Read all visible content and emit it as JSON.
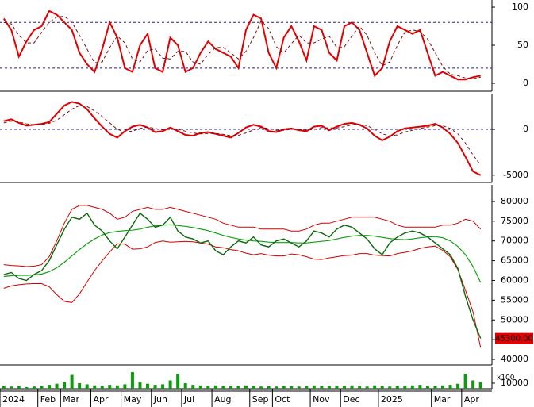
{
  "chart_data": [
    {
      "type": "line",
      "ylim": [
        -10.4,
        109.4
      ],
      "yticks": [
        100,
        50,
        0
      ],
      "levels": [
        80,
        20
      ],
      "series": [
        {
          "color": "#e00000",
          "values": [
            85,
            70,
            35,
            55,
            70,
            75,
            95,
            90,
            80,
            70,
            40,
            25,
            15,
            45,
            80,
            60,
            20,
            15,
            50,
            65,
            20,
            15,
            60,
            50,
            15,
            20,
            40,
            55,
            45,
            40,
            35,
            20,
            70,
            90,
            85,
            40,
            20,
            60,
            75,
            55,
            30,
            75,
            70,
            40,
            30,
            75,
            80,
            70,
            40,
            10,
            20,
            55,
            75,
            70,
            65,
            70,
            40,
            10,
            15,
            10,
            5,
            5,
            8,
            10
          ]
        },
        {
          "color": "#7a1010",
          "dashed": true,
          "values": [
            80,
            78,
            63,
            53,
            53,
            67,
            80,
            87,
            88,
            80,
            63,
            45,
            27,
            28,
            47,
            62,
            53,
            32,
            28,
            43,
            45,
            33,
            32,
            42,
            42,
            28,
            25,
            38,
            47,
            47,
            40,
            32,
            42,
            60,
            82,
            72,
            48,
            40,
            52,
            63,
            53,
            53,
            58,
            62,
            47,
            48,
            62,
            75,
            63,
            40,
            23,
            28,
            50,
            67,
            70,
            68,
            58,
            40,
            22,
            12,
            10,
            7,
            6,
            8
          ]
        }
      ]
    },
    {
      "type": "line",
      "ylim": [
        -5800,
        3900
      ],
      "yticks": [
        0,
        -5000
      ],
      "levels": [
        0
      ],
      "series": [
        {
          "color": "#e00000",
          "values": [
            900,
            1100,
            700,
            400,
            500,
            600,
            800,
            1700,
            2600,
            3000,
            2800,
            2200,
            1200,
            300,
            -500,
            -900,
            -200,
            300,
            500,
            200,
            -300,
            -200,
            200,
            -200,
            -600,
            -700,
            -400,
            -300,
            -500,
            -700,
            -900,
            -400,
            200,
            500,
            300,
            -200,
            -300,
            0,
            100,
            -100,
            -200,
            300,
            400,
            -100,
            300,
            600,
            700,
            500,
            100,
            -700,
            -1200,
            -800,
            -200,
            100,
            200,
            300,
            400,
            600,
            200,
            -500,
            -1500,
            -3000,
            -4600,
            -5000
          ]
        },
        {
          "color": "#7a1010",
          "dashed": true,
          "values": [
            700,
            900,
            800,
            600,
            500,
            550,
            650,
            1000,
            1600,
            2200,
            2600,
            2500,
            2000,
            1400,
            700,
            0,
            -300,
            -200,
            100,
            250,
            100,
            -50,
            0,
            0,
            -200,
            -400,
            -500,
            -450,
            -450,
            -550,
            -700,
            -650,
            -400,
            -50,
            200,
            100,
            -100,
            -100,
            0,
            0,
            -100,
            0,
            200,
            150,
            150,
            300,
            500,
            550,
            400,
            0,
            -500,
            -700,
            -600,
            -300,
            -100,
            100,
            250,
            400,
            400,
            100,
            -500,
            -1500,
            -2800,
            -3900
          ]
        }
      ]
    },
    {
      "type": "line",
      "ylim": [
        38600,
        84200
      ],
      "yticks": [
        80000,
        75000,
        70000,
        65000,
        60000,
        55000,
        50000,
        45000,
        40000
      ],
      "last_label": "45300.00",
      "series": [
        {
          "color": "#d00000",
          "width": 1,
          "values": [
            64000,
            63800,
            63700,
            63500,
            63600,
            64000,
            66000,
            70000,
            74500,
            78000,
            79000,
            79000,
            78500,
            78000,
            77000,
            75500,
            76000,
            77500,
            78000,
            78500,
            78000,
            78000,
            78500,
            78000,
            77500,
            77000,
            76500,
            76000,
            75500,
            74500,
            74000,
            73500,
            73500,
            73500,
            73000,
            73000,
            73000,
            73000,
            72500,
            72500,
            73000,
            74000,
            74500,
            74500,
            75000,
            75500,
            76000,
            76000,
            76000,
            76000,
            75500,
            75000,
            74000,
            73500,
            73500,
            73500,
            73500,
            73500,
            74000,
            74000,
            74500,
            75500,
            75000,
            73000
          ]
        },
        {
          "color": "#d00000",
          "width": 1,
          "values": [
            58000,
            58600,
            58900,
            59100,
            59200,
            59200,
            58400,
            56400,
            54700,
            54400,
            56600,
            59600,
            62500,
            65000,
            67200,
            69300,
            69200,
            67900,
            68000,
            68500,
            69600,
            70000,
            69700,
            69800,
            69900,
            69800,
            69500,
            69200,
            68500,
            68300,
            67800,
            67500,
            66900,
            66500,
            66800,
            66400,
            66200,
            66200,
            66700,
            66500,
            66000,
            65400,
            65300,
            65700,
            66000,
            66300,
            66400,
            66800,
            66800,
            66400,
            66300,
            66200,
            66800,
            67100,
            67500,
            68100,
            68500,
            68700,
            67600,
            66000,
            62700,
            57500,
            52000,
            43000
          ]
        },
        {
          "color": "#10a010",
          "width": 1.2,
          "values": [
            61000,
            61200,
            61300,
            61300,
            61400,
            61600,
            62200,
            63200,
            64600,
            66200,
            67800,
            69300,
            70500,
            71500,
            72100,
            72400,
            72600,
            72700,
            73000,
            73500,
            73800,
            74000,
            74100,
            73900,
            73700,
            73400,
            73000,
            72600,
            72000,
            71400,
            70900,
            70500,
            70200,
            70000,
            69900,
            69700,
            69600,
            69600,
            69600,
            69500,
            69500,
            69700,
            69900,
            70100,
            70500,
            70900,
            71200,
            71400,
            71400,
            71200,
            70900,
            70600,
            70400,
            70300,
            70500,
            70800,
            71000,
            71100,
            70800,
            70000,
            68600,
            66500,
            63500,
            59500
          ]
        },
        {
          "color": "#0a6a0a",
          "width": 1.4,
          "values": [
            61500,
            62000,
            60500,
            60000,
            61500,
            62500,
            65000,
            69000,
            73000,
            76000,
            75500,
            77000,
            74000,
            72500,
            70000,
            68000,
            71000,
            74000,
            77000,
            75500,
            73500,
            74000,
            76000,
            72500,
            71000,
            70500,
            69500,
            70000,
            67500,
            66500,
            68500,
            70000,
            69500,
            71000,
            69000,
            68500,
            70000,
            70500,
            69500,
            68500,
            70000,
            72500,
            72000,
            71000,
            73000,
            74000,
            73500,
            72000,
            70500,
            68000,
            66500,
            69500,
            71000,
            72000,
            72500,
            72000,
            71000,
            69500,
            68000,
            66500,
            63000,
            56000,
            50000,
            45300
          ]
        }
      ]
    },
    {
      "type": "bar",
      "ylim": [
        0,
        40000
      ],
      "yticks": [
        10000
      ],
      "unit_label": "x100",
      "xlim": [
        0,
        65
      ],
      "xticks": [
        {
          "value": 0,
          "label": "2024"
        },
        {
          "value": 5,
          "label": "Feb"
        },
        {
          "value": 8,
          "label": "Mar"
        },
        {
          "value": 12,
          "label": "Apr"
        },
        {
          "value": 16,
          "label": "May"
        },
        {
          "value": 20,
          "label": "Jun"
        },
        {
          "value": 24,
          "label": "Jul"
        },
        {
          "value": 28,
          "label": "Aug"
        },
        {
          "value": 33,
          "label": "Sep"
        },
        {
          "value": 36,
          "label": "Oct"
        },
        {
          "value": 41,
          "label": "Nov"
        },
        {
          "value": 45,
          "label": "Dec"
        },
        {
          "value": 50,
          "label": "2025"
        },
        {
          "value": 57,
          "label": "Mar"
        },
        {
          "value": 61,
          "label": "Apr"
        }
      ],
      "series": [
        {
          "color": "#119911",
          "values": [
            5000,
            4000,
            4500,
            3000,
            4000,
            5000,
            7000,
            9000,
            12000,
            25000,
            10000,
            8000,
            6000,
            5000,
            7000,
            6000,
            8000,
            30000,
            12000,
            9000,
            7000,
            8000,
            15000,
            26000,
            10000,
            7000,
            6000,
            5000,
            6000,
            5000,
            4500,
            5000,
            6000,
            5000,
            4000,
            4500,
            4000,
            5000,
            4500,
            4000,
            5000,
            6000,
            5000,
            4500,
            5000,
            5000,
            6000,
            4500,
            4000,
            6000,
            5000,
            4000,
            5000,
            5500,
            6000,
            7000,
            5000,
            5000,
            6000,
            7000,
            9000,
            27000,
            15000,
            12000
          ]
        }
      ]
    }
  ]
}
